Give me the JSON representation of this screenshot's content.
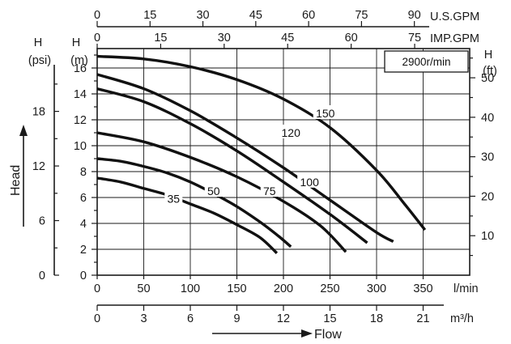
{
  "chart_data": {
    "type": "line",
    "speed_label": "2900r/min",
    "x_title": "Flow",
    "y_title": "Head",
    "axes": {
      "lpm": {
        "unit": "l/min",
        "range": [
          0,
          400
        ],
        "ticks": [
          0,
          50,
          100,
          150,
          200,
          250,
          300,
          350
        ],
        "grid": true
      },
      "m3h": {
        "unit": "m³/h",
        "range": [
          0,
          24
        ],
        "ticks": [
          0,
          3,
          6,
          9,
          12,
          15,
          18,
          21
        ]
      },
      "usgpm": {
        "unit": "U.S.GPM",
        "range": [
          0,
          105.7
        ],
        "ticks": [
          0,
          15,
          30,
          45,
          60,
          75,
          90
        ]
      },
      "impgpm": {
        "unit": "IMP.GPM",
        "range": [
          0,
          88
        ],
        "ticks": [
          0,
          15,
          30,
          45,
          60,
          75
        ]
      },
      "head_m": {
        "title": "H",
        "unit": "(m)",
        "range": [
          0,
          17.5
        ],
        "ticks": [
          0,
          2,
          4,
          6,
          8,
          10,
          12,
          14,
          16
        ],
        "minor_step": 1,
        "grid": true
      },
      "head_ft": {
        "title": "H",
        "unit": "(ft)",
        "range": [
          0,
          57.4
        ],
        "ticks": [
          10,
          20,
          30,
          40,
          50
        ]
      },
      "head_psi": {
        "title": "H",
        "unit": "(psi)",
        "range": [
          0,
          24.9
        ],
        "ticks": [
          0,
          6,
          12,
          18
        ]
      }
    },
    "series": [
      {
        "name": "35",
        "label_at": [
          82,
          5.9
        ],
        "points": [
          [
            0,
            7.5
          ],
          [
            25,
            7.2
          ],
          [
            50,
            6.7
          ],
          [
            75,
            6.2
          ],
          [
            100,
            5.5
          ],
          [
            125,
            4.8
          ],
          [
            150,
            3.9
          ],
          [
            175,
            2.9
          ],
          [
            193,
            1.7
          ]
        ]
      },
      {
        "name": "50",
        "label_at": [
          125,
          6.5
        ],
        "points": [
          [
            0,
            9.0
          ],
          [
            25,
            8.8
          ],
          [
            50,
            8.4
          ],
          [
            75,
            7.9
          ],
          [
            100,
            7.2
          ],
          [
            125,
            6.3
          ],
          [
            150,
            5.3
          ],
          [
            175,
            4.1
          ],
          [
            195,
            3.0
          ],
          [
            208,
            2.2
          ]
        ]
      },
      {
        "name": "75",
        "label_at": [
          185,
          6.5
        ],
        "points": [
          [
            0,
            11.0
          ],
          [
            50,
            10.3
          ],
          [
            100,
            9.1
          ],
          [
            150,
            7.6
          ],
          [
            200,
            5.7
          ],
          [
            240,
            3.8
          ],
          [
            267,
            1.8
          ]
        ]
      },
      {
        "name": "100",
        "label_at": [
          228,
          7.2
        ],
        "points": [
          [
            0,
            14.4
          ],
          [
            50,
            13.4
          ],
          [
            100,
            11.7
          ],
          [
            150,
            9.6
          ],
          [
            200,
            7.2
          ],
          [
            250,
            4.7
          ],
          [
            290,
            2.5
          ]
        ]
      },
      {
        "name": "120",
        "label_at": [
          208,
          11.0
        ],
        "points": [
          [
            0,
            15.5
          ],
          [
            50,
            14.4
          ],
          [
            100,
            12.7
          ],
          [
            150,
            10.6
          ],
          [
            200,
            8.3
          ],
          [
            250,
            5.8
          ],
          [
            300,
            3.3
          ],
          [
            318,
            2.6
          ]
        ]
      },
      {
        "name": "150",
        "label_at": [
          245,
          12.5
        ],
        "points": [
          [
            0,
            16.9
          ],
          [
            50,
            16.7
          ],
          [
            100,
            16.1
          ],
          [
            150,
            15.1
          ],
          [
            200,
            13.6
          ],
          [
            250,
            11.4
          ],
          [
            300,
            8.1
          ],
          [
            330,
            5.5
          ],
          [
            352,
            3.5
          ]
        ]
      }
    ]
  }
}
